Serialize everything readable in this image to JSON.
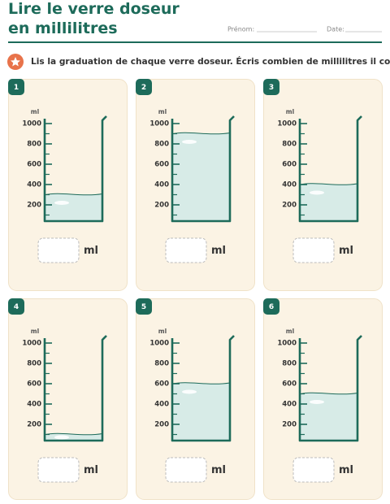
{
  "header": {
    "title": "Lire le verre doseur en millilitres",
    "name_label": "Prénom:",
    "date_label": "Date:"
  },
  "instruction": "Lis la graduation de chaque verre doseur. Écris combien de millilitres il contient.",
  "scale": {
    "unit": "ml",
    "ticks": [
      1000,
      800,
      600,
      400,
      200
    ]
  },
  "cards": [
    {
      "number": "1",
      "level": 300
    },
    {
      "number": "2",
      "level": 900
    },
    {
      "number": "3",
      "level": 400
    },
    {
      "number": "4",
      "level": 100
    },
    {
      "number": "5",
      "level": 600
    },
    {
      "number": "6",
      "level": 500
    }
  ]
}
